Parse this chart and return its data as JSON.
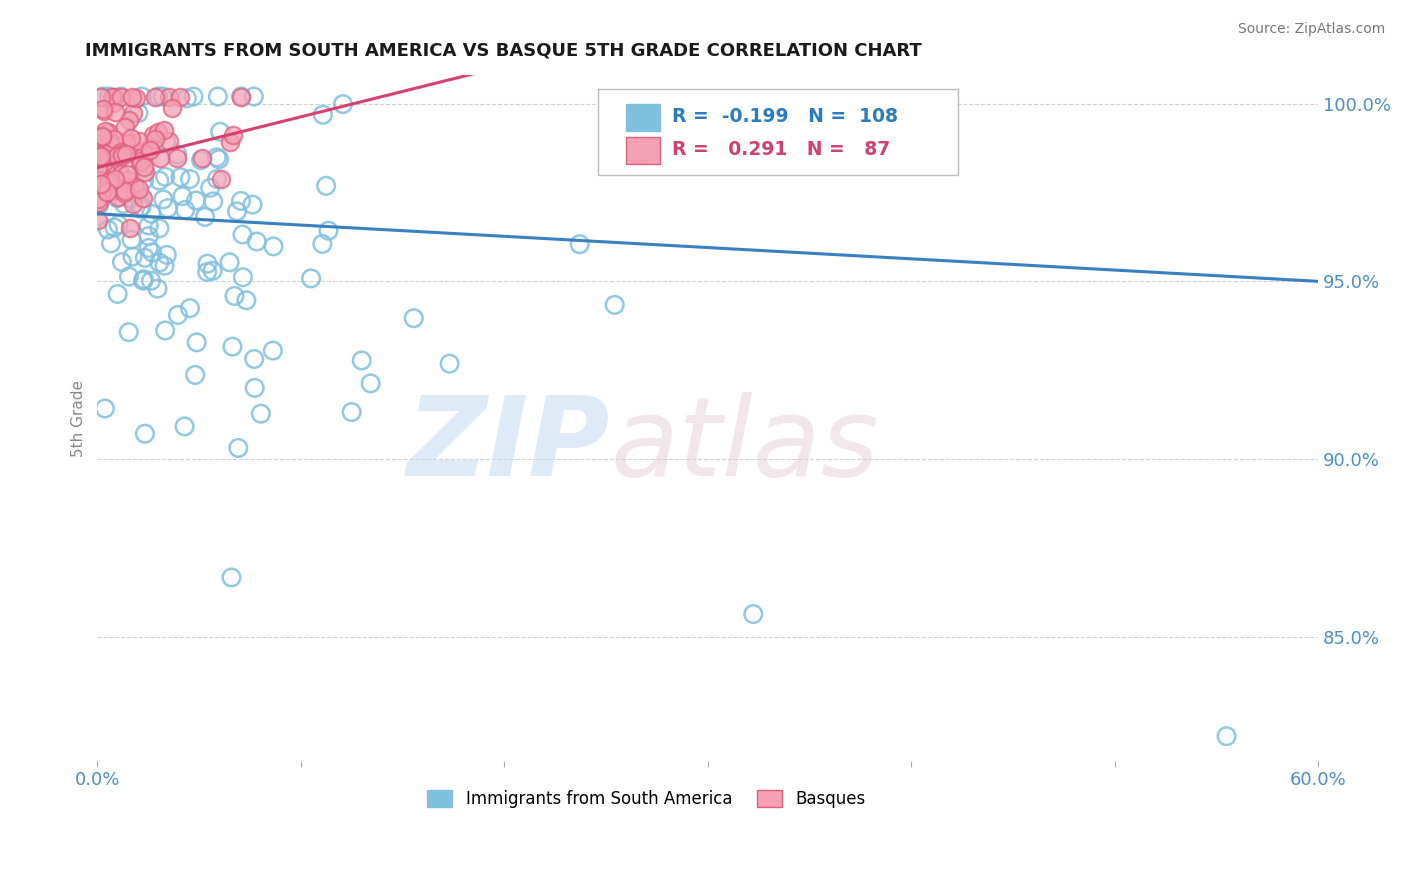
{
  "title": "IMMIGRANTS FROM SOUTH AMERICA VS BASQUE 5TH GRADE CORRELATION CHART",
  "source": "Source: ZipAtlas.com",
  "ylabel": "5th Grade",
  "xlim": [
    0.0,
    0.6
  ],
  "ylim": [
    0.815,
    1.008
  ],
  "xticks": [
    0.0,
    0.1,
    0.2,
    0.3,
    0.4,
    0.5,
    0.6
  ],
  "xticklabels": [
    "0.0%",
    "",
    "",
    "",
    "",
    "",
    "60.0%"
  ],
  "yticks": [
    0.85,
    0.9,
    0.95,
    1.0
  ],
  "yticklabels": [
    "85.0%",
    "90.0%",
    "95.0%",
    "100.0%"
  ],
  "blue_R": -0.199,
  "blue_N": 108,
  "pink_R": 0.291,
  "pink_N": 87,
  "blue_color": "#7fbfdf",
  "pink_color": "#f4a0b5",
  "blue_edge_color": "#5aa0c8",
  "pink_edge_color": "#e06080",
  "blue_line_color": "#3a7fc0",
  "pink_line_color": "#d84070",
  "legend_R_blue": "-0.199",
  "legend_N_blue": "108",
  "legend_R_pink": "0.291",
  "legend_N_pink": "87",
  "background_color": "#ffffff",
  "seed_blue": 123,
  "seed_pink": 456
}
